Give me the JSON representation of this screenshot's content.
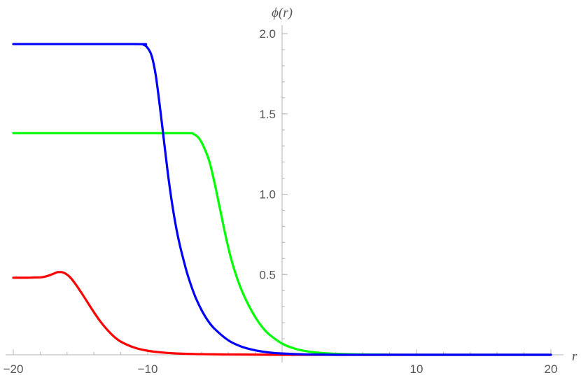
{
  "chart_data": {
    "type": "line",
    "xlabel": "r",
    "ylabel": "ϕ(r)",
    "xlim": [
      -20,
      20
    ],
    "ylim": [
      0,
      2.0
    ],
    "x_ticks": [
      {
        "value": -20,
        "label": "−20"
      },
      {
        "value": -10,
        "label": "−10"
      },
      {
        "value": 10,
        "label": "10"
      },
      {
        "value": 20,
        "label": "20"
      }
    ],
    "y_ticks": [
      {
        "value": 0.5,
        "label": "0.5"
      },
      {
        "value": 1.0,
        "label": "1.0"
      },
      {
        "value": 1.5,
        "label": "1.5"
      },
      {
        "value": 2.0,
        "label": "2.0"
      }
    ],
    "x_minor_step": 2,
    "y_minor_step": 0.1,
    "grid": false,
    "series": [
      {
        "color": "#ff0000",
        "x": [
          -20,
          -19,
          -18,
          -17.5,
          -17,
          -16.7,
          -16.4,
          -16.1,
          -15.8,
          -15.5,
          -15,
          -14.5,
          -14,
          -13.5,
          -13,
          -12.5,
          -12,
          -11,
          -10,
          -9,
          -8,
          -7,
          -6,
          -4,
          -2,
          0,
          5,
          10,
          20
        ],
        "y": [
          0.48,
          0.48,
          0.482,
          0.49,
          0.505,
          0.515,
          0.515,
          0.505,
          0.485,
          0.455,
          0.395,
          0.33,
          0.265,
          0.205,
          0.155,
          0.113,
          0.082,
          0.045,
          0.025,
          0.015,
          0.009,
          0.006,
          0.004,
          0.002,
          0.001,
          0.0,
          0.0,
          0.0,
          0.0
        ]
      },
      {
        "color": "#00ff00",
        "x": [
          -20,
          -10,
          -7,
          -6.6,
          -6.2,
          -5.8,
          -5.4,
          -5,
          -4.6,
          -4.2,
          -3.8,
          -3.4,
          -3,
          -2.5,
          -2,
          -1.5,
          -1,
          0,
          1,
          2,
          3,
          4,
          6,
          10,
          20
        ],
        "y": [
          1.38,
          1.38,
          1.38,
          1.375,
          1.35,
          1.29,
          1.2,
          1.06,
          0.9,
          0.74,
          0.6,
          0.49,
          0.4,
          0.31,
          0.235,
          0.175,
          0.13,
          0.07,
          0.037,
          0.02,
          0.011,
          0.006,
          0.002,
          0.0,
          0.0
        ]
      },
      {
        "color": "#0000ff",
        "x": [
          -20,
          -11,
          -10.3,
          -10,
          -9.7,
          -9.4,
          -9.1,
          -8.8,
          -8.5,
          -8.2,
          -7.9,
          -7.6,
          -7.3,
          -7,
          -6.5,
          -6,
          -5.5,
          -5,
          -4,
          -3,
          -2,
          -1,
          0,
          2,
          5,
          10,
          20
        ],
        "y": [
          1.935,
          1.935,
          1.93,
          1.91,
          1.86,
          1.74,
          1.55,
          1.34,
          1.13,
          0.95,
          0.8,
          0.68,
          0.58,
          0.49,
          0.37,
          0.28,
          0.21,
          0.16,
          0.09,
          0.05,
          0.028,
          0.015,
          0.008,
          0.002,
          0.0,
          0.0,
          0.0
        ]
      }
    ]
  }
}
